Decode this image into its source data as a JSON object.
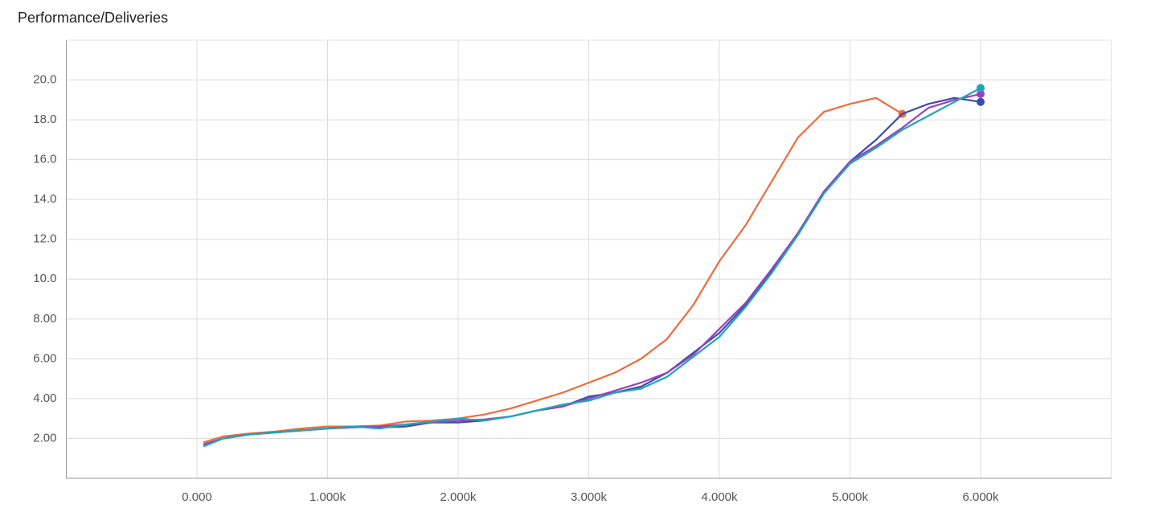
{
  "chart_data": {
    "type": "line",
    "title": "Performance/Deliveries",
    "x": [
      50,
      200,
      400,
      600,
      800,
      1000,
      1200,
      1400,
      1600,
      1800,
      2000,
      2200,
      2400,
      2600,
      2800,
      3000,
      3200,
      3400,
      3600,
      3800,
      4000,
      4200,
      4400,
      4600,
      4800,
      5000,
      5200,
      5400,
      5600,
      5800,
      6000
    ],
    "series": [
      {
        "color": "#ee6b3b",
        "values": [
          1.8,
          2.1,
          2.25,
          2.35,
          2.5,
          2.6,
          2.6,
          2.65,
          2.85,
          2.9,
          3.0,
          3.2,
          3.5,
          3.9,
          4.3,
          4.8,
          5.3,
          6.0,
          7.0,
          8.7,
          10.9,
          12.7,
          14.9,
          17.1,
          18.4,
          18.8,
          19.1,
          18.3,
          null,
          null,
          null
        ]
      },
      {
        "color": "#3b4cad",
        "values": [
          1.7,
          2.0,
          2.2,
          2.3,
          2.4,
          2.5,
          2.6,
          2.55,
          2.6,
          2.8,
          2.8,
          2.9,
          3.1,
          3.4,
          3.6,
          4.1,
          4.3,
          4.6,
          5.3,
          6.3,
          7.3,
          8.7,
          10.4,
          12.3,
          14.4,
          15.9,
          17.0,
          18.3,
          18.8,
          19.1,
          18.9
        ]
      },
      {
        "color": "#9b3fbf",
        "values": [
          1.7,
          2.0,
          2.2,
          2.3,
          2.4,
          2.5,
          2.55,
          2.6,
          2.7,
          2.8,
          2.9,
          2.95,
          3.1,
          3.4,
          3.6,
          4.0,
          4.4,
          4.8,
          5.3,
          6.2,
          7.5,
          8.8,
          10.5,
          12.3,
          14.4,
          15.9,
          16.7,
          17.6,
          18.6,
          19.0,
          19.3
        ]
      },
      {
        "color": "#1ca7b5",
        "values": [
          1.6,
          2.0,
          2.2,
          2.3,
          2.4,
          2.5,
          2.6,
          2.5,
          2.7,
          2.85,
          3.0,
          2.9,
          3.1,
          3.4,
          3.7,
          3.9,
          4.3,
          4.5,
          5.1,
          6.1,
          7.1,
          8.6,
          10.3,
          12.2,
          14.3,
          15.8,
          16.6,
          17.5,
          18.2,
          18.9,
          19.6
        ]
      }
    ],
    "xlim": [
      -1000,
      7000
    ],
    "xticks": [
      {
        "value": 0,
        "label": "0.000"
      },
      {
        "value": 1000,
        "label": "1.000k"
      },
      {
        "value": 2000,
        "label": "2.000k"
      },
      {
        "value": 3000,
        "label": "3.000k"
      },
      {
        "value": 4000,
        "label": "4.000k"
      },
      {
        "value": 5000,
        "label": "5.000k"
      },
      {
        "value": 6000,
        "label": "6.000k"
      }
    ],
    "ylim": [
      0,
      22
    ],
    "yticks": [
      {
        "value": 2,
        "label": "2.00"
      },
      {
        "value": 4,
        "label": "4.00"
      },
      {
        "value": 6,
        "label": "6.00"
      },
      {
        "value": 8,
        "label": "8.00"
      },
      {
        "value": 10,
        "label": "10.0"
      },
      {
        "value": 12,
        "label": "12.0"
      },
      {
        "value": 14,
        "label": "14.0"
      },
      {
        "value": 16,
        "label": "16.0"
      },
      {
        "value": 18,
        "label": "18.0"
      },
      {
        "value": 20,
        "label": "20.0"
      }
    ],
    "grid": true
  }
}
